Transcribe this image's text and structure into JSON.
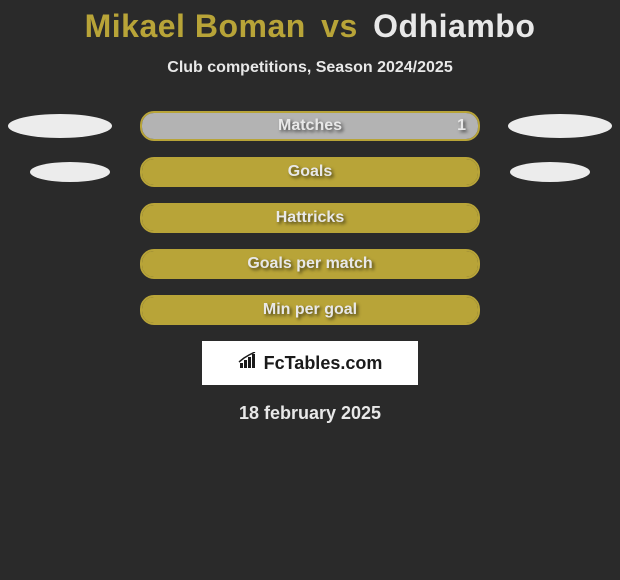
{
  "title": {
    "player1": "Mikael Boman",
    "vs": "vs",
    "player2": "Odhiambo"
  },
  "subtitle": "Club competitions, Season 2024/2025",
  "colors": {
    "player1": "#b8a438",
    "player2": "#e8e8e8",
    "bar_border": "#b8a438",
    "bar_fill_p1": "#b8a438",
    "bar_fill_p2": "#b3b3b3",
    "background": "#2a2a2a",
    "ellipse": "#ececec"
  },
  "stats": [
    {
      "label": "Matches",
      "left_value": "",
      "right_value": "1",
      "left_fill_pct": 0,
      "right_fill_pct": 100,
      "fill_color": "#b3b3b3",
      "show_left_ellipse": true,
      "show_right_ellipse": true,
      "ellipse_size": "large"
    },
    {
      "label": "Goals",
      "left_value": "",
      "right_value": "",
      "left_fill_pct": 0,
      "right_fill_pct": 100,
      "fill_color": "#b8a438",
      "show_left_ellipse": true,
      "show_right_ellipse": true,
      "ellipse_size": "small"
    },
    {
      "label": "Hattricks",
      "left_value": "",
      "right_value": "",
      "left_fill_pct": 0,
      "right_fill_pct": 100,
      "fill_color": "#b8a438",
      "show_left_ellipse": false,
      "show_right_ellipse": false,
      "ellipse_size": "none"
    },
    {
      "label": "Goals per match",
      "left_value": "",
      "right_value": "",
      "left_fill_pct": 0,
      "right_fill_pct": 100,
      "fill_color": "#b8a438",
      "show_left_ellipse": false,
      "show_right_ellipse": false,
      "ellipse_size": "none"
    },
    {
      "label": "Min per goal",
      "left_value": "",
      "right_value": "",
      "left_fill_pct": 0,
      "right_fill_pct": 100,
      "fill_color": "#b8a438",
      "show_left_ellipse": false,
      "show_right_ellipse": false,
      "ellipse_size": "none"
    }
  ],
  "logo": {
    "text": "FcTables.com",
    "icon": "chart-icon"
  },
  "date": "18 february 2025"
}
